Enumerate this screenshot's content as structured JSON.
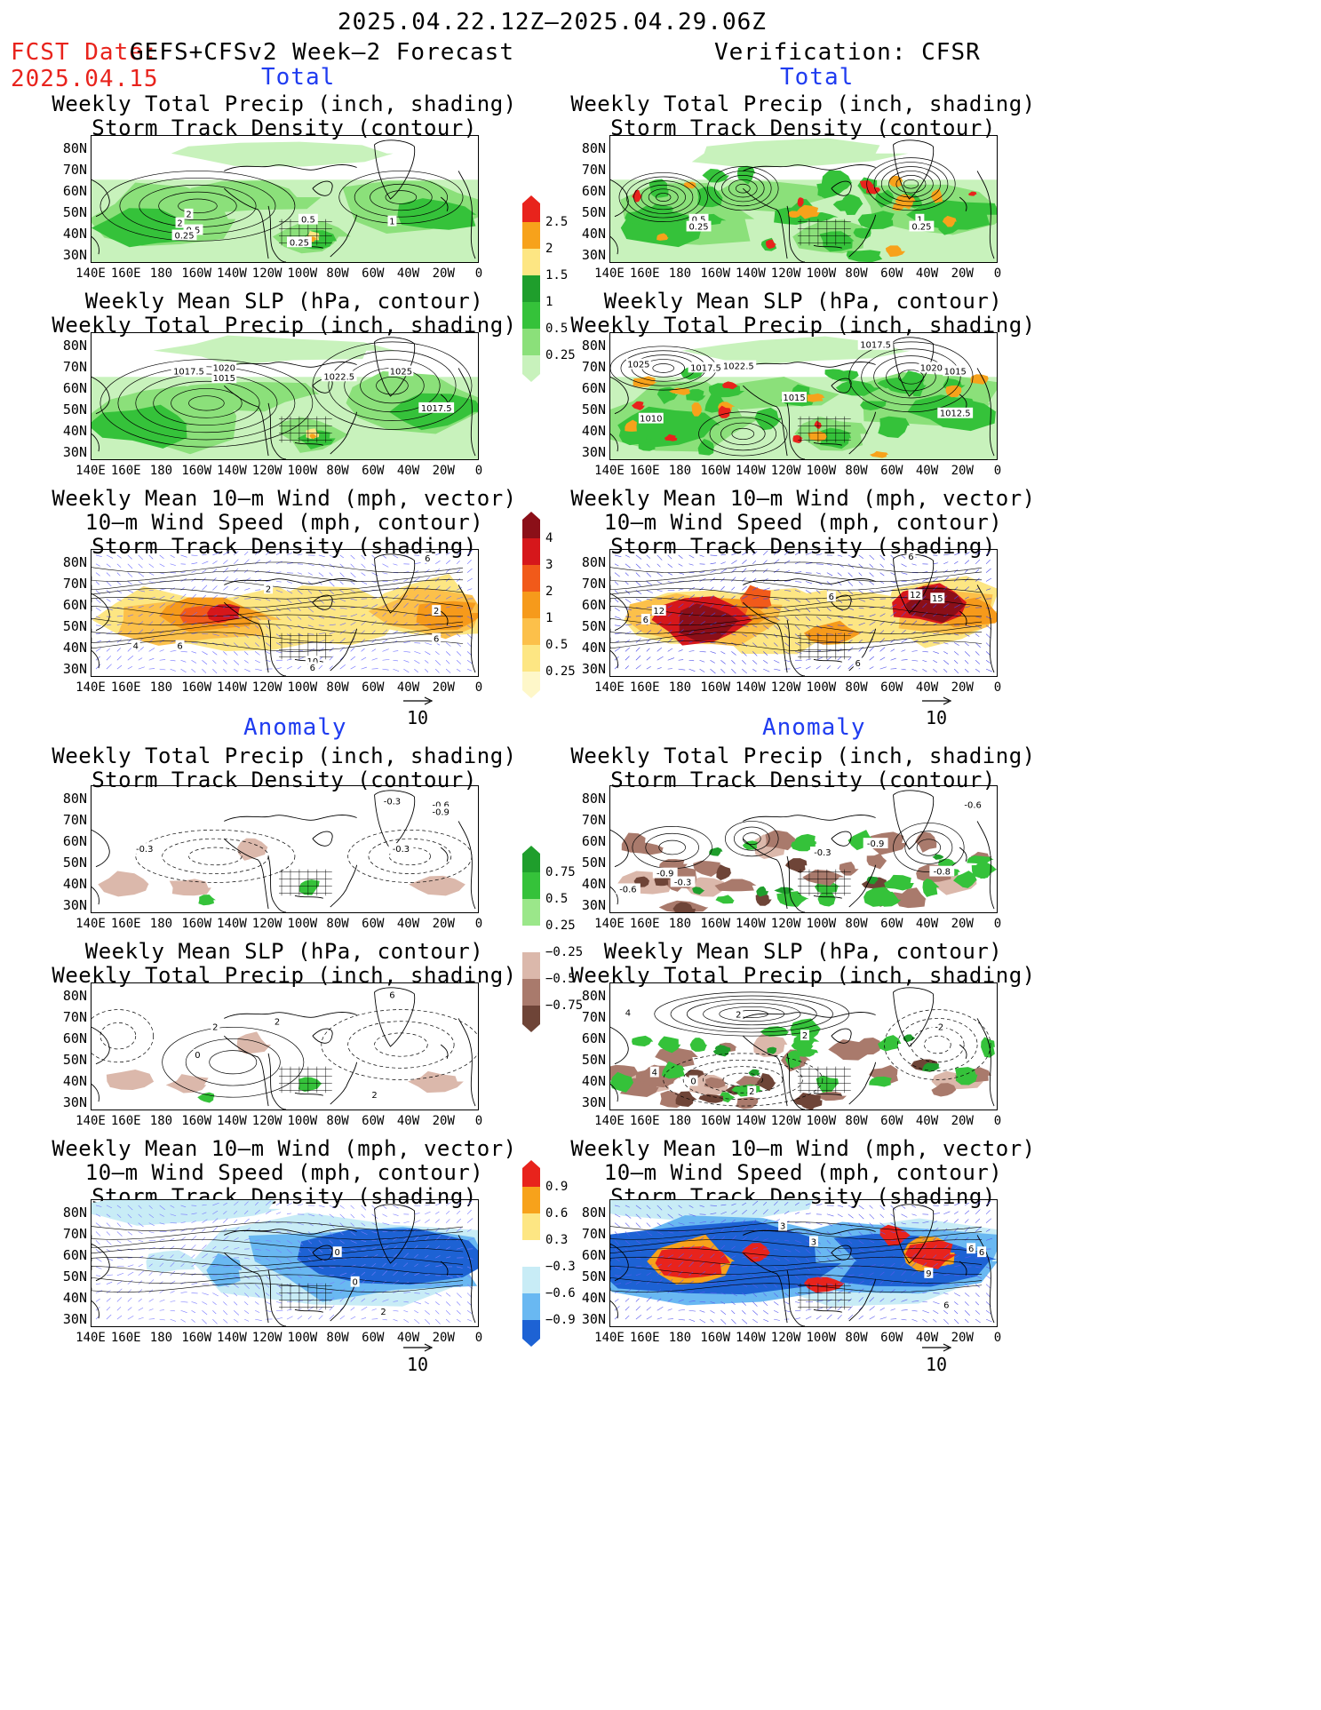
{
  "header": {
    "date_range": "2025.04.22.12Z—2025.04.29.06Z",
    "fcst_date_label": "FCST Date:",
    "forecast_name": "GEFS+CFSv2 Week—2 Forecast",
    "fcst_date": "2025.04.15",
    "verification": "Verification: CFSR"
  },
  "sections": {
    "total": "Total",
    "anomaly": "Anomaly"
  },
  "panel_titles": {
    "precip_std": "Weekly Total Precip (inch, shading)\nStorm Track Density (contour)",
    "slp_precip": "Weekly Mean SLP (hPa, contour)\nWeekly Total Precip (inch, shading)",
    "wind_std": "Weekly Mean 10—m Wind (mph, vector)\n10—m Wind Speed (mph, contour)\nStorm Track Density (shading)"
  },
  "axes": {
    "lat_labels": [
      "80N",
      "70N",
      "60N",
      "50N",
      "40N",
      "30N"
    ],
    "lon_labels": [
      "140E",
      "160E",
      "180",
      "160W",
      "140W",
      "120W",
      "100W",
      "80W",
      "60W",
      "40W",
      "20W",
      "0"
    ]
  },
  "vector_ref": "10",
  "colorbars": {
    "total_precip": {
      "labels": [
        "2.5",
        "2",
        "1.5",
        "1",
        "0.5",
        "0.25"
      ],
      "colors": [
        "#e8231c",
        "#f7a21b",
        "#fde683",
        "#1f9e2c",
        "#35c23a",
        "#8be07a",
        "#c8f2bc"
      ]
    },
    "total_std": {
      "labels": [
        "4",
        "3",
        "2",
        "1",
        "0.5",
        "0.25"
      ],
      "colors": [
        "#8b0f18",
        "#d6171b",
        "#f15a1a",
        "#f69a1b",
        "#fcc04a",
        "#fde683",
        "#fef7c9"
      ]
    },
    "anom_precip": {
      "labels": [
        "0.75",
        "0.5",
        "0.25",
        "−0.25",
        "−0.5",
        "−0.75"
      ],
      "colors": [
        "#1f9e2c",
        "#35c23a",
        "#9be78a",
        "#ffffff",
        "#dbb8ab",
        "#a97a6c",
        "#6e4437"
      ]
    },
    "anom_std": {
      "labels": [
        "0.9",
        "0.6",
        "0.3",
        "−0.3",
        "−0.6",
        "−0.9"
      ],
      "colors": [
        "#e8231c",
        "#f7a21b",
        "#fde683",
        "#ffffff",
        "#c8ecf6",
        "#69b8f2",
        "#1d62d4"
      ]
    }
  },
  "contour_labels": {
    "tl1": [
      "2",
      "2",
      "0.5",
      "0.25",
      "0.5",
      "0.25",
      "1"
    ],
    "tr1": [
      "0.5",
      "0.25",
      "1",
      "0.25"
    ],
    "tl2": [
      "1017.5",
      "1020",
      "1015",
      "1022.5",
      "1025",
      "1017.5"
    ],
    "tr2": [
      "1025",
      "1017.5",
      "1022.5",
      "1015",
      "1017.5",
      "1020",
      "1015",
      "1010",
      "1012.5"
    ],
    "tl3": [
      "2",
      "6",
      "4",
      "6",
      "2",
      "10",
      "6",
      "6"
    ],
    "tr3": [
      "12",
      "6",
      "12",
      "15",
      "6",
      "6",
      "6"
    ],
    "bl1": [
      "-0.3",
      "-0.6",
      "-0.9",
      "-0.3",
      "-0.3"
    ],
    "br1": [
      "-0.6",
      "-0.9",
      "-0.3",
      "-0.9",
      "-0.8",
      "-0.6",
      "-0.3"
    ],
    "bl2": [
      "2",
      "0",
      "2",
      "6",
      "2"
    ],
    "br2": [
      "4",
      "2",
      "0",
      "2",
      "4",
      "-2",
      "2"
    ],
    "bl3": [
      "0",
      "0",
      "2"
    ],
    "br3": [
      "3",
      "3",
      "6",
      "6",
      "9",
      "6"
    ]
  }
}
